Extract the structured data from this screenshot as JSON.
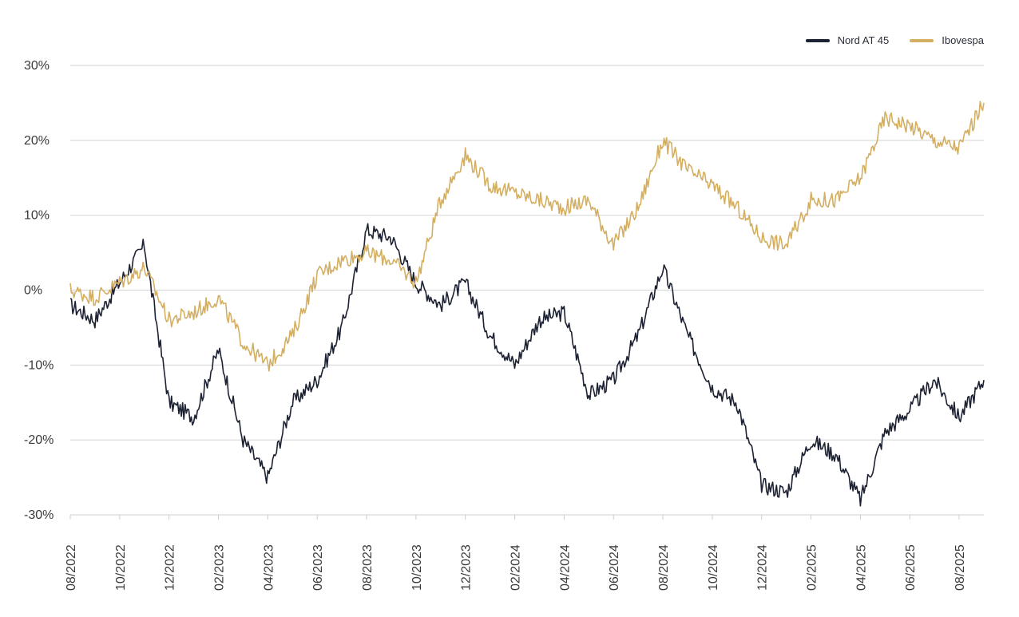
{
  "chart_data": {
    "type": "line",
    "title": "",
    "xlabel": "",
    "ylabel": "",
    "ylim": [
      -30,
      30
    ],
    "y_ticks": [
      30,
      20,
      10,
      0,
      -10,
      -20,
      -30
    ],
    "y_tick_labels": [
      "30%",
      "20%",
      "10%",
      "0%",
      "-10%",
      "-20%",
      "-30%"
    ],
    "x_tick_labels": [
      "08/2022",
      "10/2022",
      "12/2022",
      "02/2023",
      "04/2023",
      "06/2023",
      "08/2023",
      "10/2023",
      "12/2023",
      "02/2024",
      "04/2024",
      "06/2024",
      "08/2024",
      "10/2024",
      "12/2024",
      "02/2025",
      "04/2025",
      "06/2025",
      "08/2025"
    ],
    "x_range": [
      "2022-08",
      "2025-09"
    ],
    "grid": true,
    "legend_position": "top-right",
    "x": [
      "2022-08",
      "2022-09",
      "2022-10",
      "2022-11",
      "2022-12",
      "2023-01",
      "2023-02",
      "2023-03",
      "2023-04",
      "2023-05",
      "2023-06",
      "2023-07",
      "2023-08",
      "2023-09",
      "2023-10",
      "2023-11",
      "2023-12",
      "2024-01",
      "2024-02",
      "2024-03",
      "2024-04",
      "2024-05",
      "2024-06",
      "2024-07",
      "2024-08",
      "2024-09",
      "2024-10",
      "2024-11",
      "2024-12",
      "2025-01",
      "2025-02",
      "2025-03",
      "2025-04",
      "2025-05",
      "2025-06",
      "2025-07",
      "2025-08",
      "2025-09"
    ],
    "series": [
      {
        "name": "Nord AT 45",
        "color": "#1d2233",
        "values": [
          -2,
          -4,
          1,
          6,
          -15,
          -17,
          -8,
          -20,
          -25,
          -15,
          -12,
          -5,
          8,
          7,
          1,
          -2,
          1,
          -6,
          -10,
          -4,
          -3,
          -14,
          -12,
          -6,
          3,
          -6,
          -13,
          -15,
          -26,
          -27,
          -20,
          -22,
          -28,
          -19,
          -16,
          -12,
          -17,
          -12
        ]
      },
      {
        "name": "Ibovespa",
        "color": "#d4af61",
        "values": [
          0,
          -1,
          1,
          3,
          -4,
          -3,
          -1,
          -7,
          -10,
          -6,
          2,
          4,
          5,
          4,
          1,
          12,
          18,
          14,
          13,
          12,
          11,
          12,
          6,
          11,
          20,
          16,
          14,
          11,
          7,
          6,
          12,
          12,
          15,
          23,
          22,
          20,
          19,
          25
        ]
      }
    ]
  }
}
